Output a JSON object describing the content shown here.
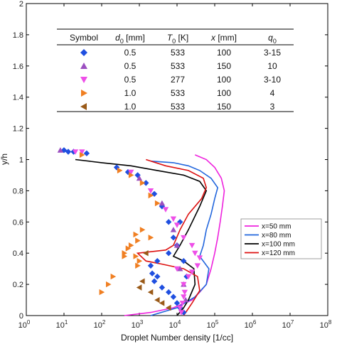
{
  "chart_data": {
    "type": "scatter",
    "title": "",
    "xlabel": "Droplet Number density [1/cc]",
    "ylabel": "y/h",
    "xscale": "log",
    "xlim": [
      1,
      100000000
    ],
    "ylim": [
      0,
      2
    ],
    "grid": false,
    "x_ticks": [
      {
        "v": 1,
        "base": "10",
        "exp": "0"
      },
      {
        "v": 10,
        "base": "10",
        "exp": "1"
      },
      {
        "v": 100,
        "base": "10",
        "exp": "2"
      },
      {
        "v": 1000,
        "base": "10",
        "exp": "3"
      },
      {
        "v": 10000,
        "base": "10",
        "exp": "4"
      },
      {
        "v": 100000,
        "base": "10",
        "exp": "5"
      },
      {
        "v": 1000000,
        "base": "10",
        "exp": "6"
      },
      {
        "v": 10000000,
        "base": "10",
        "exp": "7"
      },
      {
        "v": 100000000,
        "base": "10",
        "exp": "8"
      }
    ],
    "y_ticks": [
      {
        "v": 0,
        "label": "0"
      },
      {
        "v": 0.2,
        "label": "0.2"
      },
      {
        "v": 0.4,
        "label": "0.4"
      },
      {
        "v": 0.6,
        "label": "0.6"
      },
      {
        "v": 0.8,
        "label": "0.8"
      },
      {
        "v": 1,
        "label": "1"
      },
      {
        "v": 1.2,
        "label": "1.2"
      },
      {
        "v": 1.4,
        "label": "1.4"
      },
      {
        "v": 1.6,
        "label": "1.6"
      },
      {
        "v": 1.8,
        "label": "1.8"
      },
      {
        "v": 2,
        "label": "2"
      }
    ],
    "table": {
      "headers": [
        {
          "text": "Symbol",
          "italic": false
        },
        {
          "text": "d",
          "sub": "0",
          "unit": " [mm]",
          "italic": true
        },
        {
          "text": "T",
          "sub": "0",
          "unit": " [K]",
          "italic": true
        },
        {
          "text": "x",
          "sub": "",
          "unit": " [mm]",
          "italic": true
        },
        {
          "text": "q",
          "sub": "0",
          "unit": "",
          "italic": true
        }
      ],
      "rows": [
        {
          "marker": "diamond",
          "color": "#1f4fe0",
          "values": [
            "0.5",
            "533",
            "100",
            "3-15"
          ]
        },
        {
          "marker": "triangle-up",
          "color": "#9b4fc0",
          "values": [
            "0.5",
            "533",
            "150",
            "10"
          ]
        },
        {
          "marker": "triangle-down",
          "color": "#ee4fe8",
          "values": [
            "0.5",
            "277",
            "100",
            "3-10"
          ]
        },
        {
          "marker": "triangle-right",
          "color": "#f07f22",
          "values": [
            "1.0",
            "533",
            "100",
            "4"
          ]
        },
        {
          "marker": "triangle-left",
          "color": "#9a5a18",
          "values": [
            "1.0",
            "533",
            "150",
            "3"
          ]
        }
      ]
    },
    "lines": [
      {
        "name": "x=50 mm",
        "color": "#ee22dd",
        "points": [
          [
            400,
            0
          ],
          [
            2000,
            0.02
          ],
          [
            8000,
            0.05
          ],
          [
            25000,
            0.1
          ],
          [
            40000,
            0.15
          ],
          [
            60000,
            0.2
          ],
          [
            80000,
            0.3
          ],
          [
            100000,
            0.4
          ],
          [
            120000,
            0.5
          ],
          [
            140000,
            0.6
          ],
          [
            160000,
            0.7
          ],
          [
            180000,
            0.8
          ],
          [
            150000,
            0.88
          ],
          [
            100000,
            0.95
          ],
          [
            60000,
            1.0
          ],
          [
            30000,
            1.03
          ]
        ]
      },
      {
        "name": "x=80 mm",
        "color": "#2266dd",
        "points": [
          [
            2000,
            0
          ],
          [
            10000,
            0.05
          ],
          [
            30000,
            0.12
          ],
          [
            60000,
            0.2
          ],
          [
            70000,
            0.3
          ],
          [
            40000,
            0.38
          ],
          [
            50000,
            0.45
          ],
          [
            60000,
            0.55
          ],
          [
            80000,
            0.65
          ],
          [
            100000,
            0.75
          ],
          [
            120000,
            0.82
          ],
          [
            80000,
            0.88
          ],
          [
            40000,
            0.93
          ],
          [
            20000,
            0.96
          ],
          [
            8000,
            0.98
          ],
          [
            2000,
            0.99
          ]
        ]
      },
      {
        "name": "x=100 mm",
        "color": "#000000",
        "points": [
          [
            10000,
            0
          ],
          [
            15000,
            0.05
          ],
          [
            20000,
            0.1
          ],
          [
            30000,
            0.2
          ],
          [
            28000,
            0.3
          ],
          [
            15000,
            0.35
          ],
          [
            8000,
            0.38
          ],
          [
            12000,
            0.45
          ],
          [
            20000,
            0.55
          ],
          [
            40000,
            0.7
          ],
          [
            60000,
            0.8
          ],
          [
            40000,
            0.86
          ],
          [
            15000,
            0.9
          ],
          [
            3000,
            0.93
          ],
          [
            600,
            0.96
          ],
          [
            100,
            0.98
          ],
          [
            20,
            1.0
          ]
        ]
      },
      {
        "name": "x=120 mm",
        "color": "#dd1111",
        "points": [
          [
            15000,
            0
          ],
          [
            25000,
            0.08
          ],
          [
            40000,
            0.16
          ],
          [
            35000,
            0.25
          ],
          [
            15000,
            0.3
          ],
          [
            4000,
            0.33
          ],
          [
            1500,
            0.35
          ],
          [
            900,
            0.4
          ],
          [
            5000,
            0.42
          ],
          [
            8000,
            0.45
          ],
          [
            12000,
            0.55
          ],
          [
            20000,
            0.65
          ],
          [
            45000,
            0.75
          ],
          [
            60000,
            0.82
          ],
          [
            50000,
            0.88
          ],
          [
            20000,
            0.93
          ],
          [
            5000,
            0.96
          ],
          [
            1500,
            1.0
          ]
        ]
      }
    ],
    "scatter": [
      {
        "marker": "diamond",
        "color": "#1f4fe0",
        "points": [
          [
            10,
            1.06
          ],
          [
            13,
            1.05
          ],
          [
            18,
            1.05
          ],
          [
            40,
            1.04
          ],
          [
            250,
            0.95
          ],
          [
            500,
            0.92
          ],
          [
            900,
            0.9
          ],
          [
            1500,
            0.85
          ],
          [
            2500,
            0.78
          ],
          [
            4000,
            0.7
          ],
          [
            6000,
            0.6
          ],
          [
            8000,
            0.5
          ],
          [
            10000,
            0.45
          ],
          [
            6000,
            0.4
          ],
          [
            3000,
            0.35
          ],
          [
            2000,
            0.32
          ],
          [
            2200,
            0.27
          ],
          [
            3000,
            0.25
          ],
          [
            2500,
            0.22
          ],
          [
            4000,
            0.18
          ],
          [
            6000,
            0.15
          ],
          [
            8000,
            0.12
          ],
          [
            10000,
            0.08
          ],
          [
            12000,
            0.05
          ],
          [
            15000,
            0.02
          ],
          [
            12000,
            0.6
          ],
          [
            15000,
            0.35
          ],
          [
            18000,
            0.25
          ]
        ]
      },
      {
        "marker": "triangle-up",
        "color": "#9b4fc0",
        "points": [
          [
            8,
            1.06
          ],
          [
            1000,
            0.88
          ],
          [
            4000,
            0.72
          ],
          [
            8000,
            0.55
          ],
          [
            10000,
            0.45
          ],
          [
            12000,
            0.3
          ],
          [
            15000,
            0.2
          ],
          [
            17000,
            0.1
          ]
        ]
      },
      {
        "marker": "triangle-down",
        "color": "#ee4fe8",
        "points": [
          [
            20,
            1.05
          ],
          [
            30,
            1.05
          ],
          [
            600,
            0.92
          ],
          [
            2000,
            0.8
          ],
          [
            5000,
            0.68
          ],
          [
            10000,
            0.58
          ],
          [
            15000,
            0.5
          ],
          [
            25000,
            0.45
          ],
          [
            30000,
            0.4
          ],
          [
            40000,
            0.37
          ],
          [
            35000,
            0.32
          ],
          [
            25000,
            0.28
          ],
          [
            20000,
            0.25
          ],
          [
            15000,
            0.2
          ],
          [
            16000,
            0.15
          ],
          [
            15000,
            0.12
          ],
          [
            14000,
            0.08
          ],
          [
            12000,
            0.05
          ],
          [
            13000,
            0.02
          ],
          [
            10000,
            0.3
          ],
          [
            8000,
            0.62
          ]
        ]
      },
      {
        "marker": "triangle-right",
        "color": "#f07f22",
        "points": [
          [
            30,
            1.03
          ],
          [
            300,
            0.93
          ],
          [
            600,
            0.9
          ],
          [
            1200,
            0.85
          ],
          [
            2000,
            0.77
          ],
          [
            3000,
            0.72
          ],
          [
            1200,
            0.55
          ],
          [
            800,
            0.52
          ],
          [
            900,
            0.48
          ],
          [
            600,
            0.45
          ],
          [
            500,
            0.43
          ],
          [
            400,
            0.4
          ],
          [
            400,
            0.38
          ],
          [
            1000,
            0.35
          ],
          [
            900,
            0.32
          ],
          [
            200,
            0.25
          ],
          [
            150,
            0.2
          ],
          [
            100,
            0.15
          ],
          [
            800,
            0.38
          ],
          [
            2000,
            0.5
          ]
        ]
      },
      {
        "marker": "triangle-left",
        "color": "#9a5a18",
        "points": [
          [
            1200,
            0.22
          ],
          [
            1000,
            0.18
          ],
          [
            2000,
            0.15
          ],
          [
            3000,
            0.1
          ],
          [
            4000,
            0.08
          ],
          [
            6000,
            0.05
          ],
          [
            1500,
            0.4
          ]
        ]
      }
    ],
    "legend": {
      "placement": "right"
    }
  }
}
